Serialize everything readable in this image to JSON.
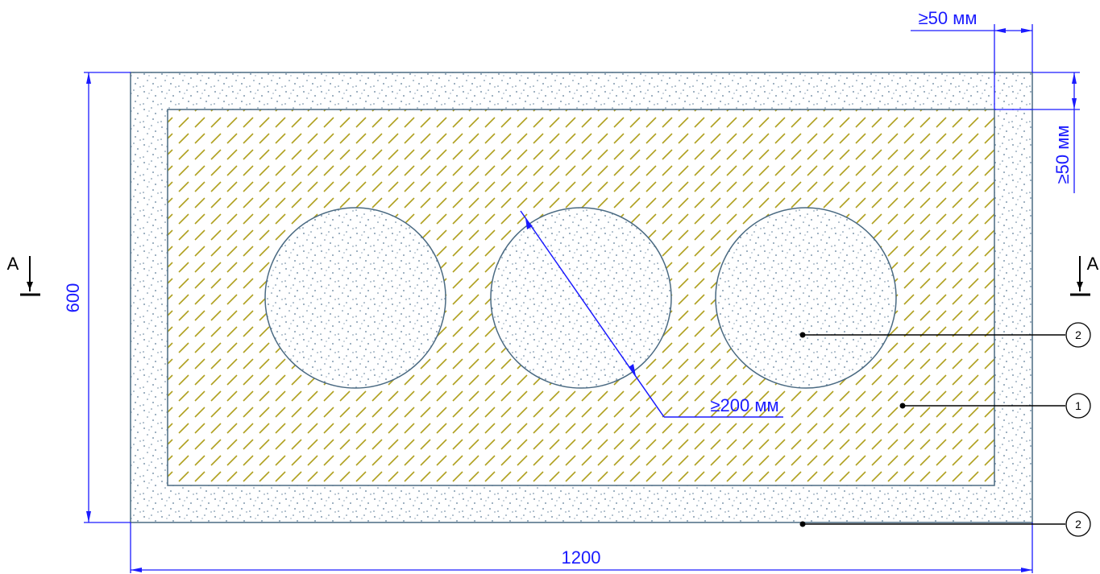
{
  "dimensions": {
    "width": "1200",
    "height": "600",
    "edge_top": "≥50 мм",
    "edge_right": "≥50 мм",
    "diagonal": "≥200 мм"
  },
  "section": {
    "left": "A",
    "right": "A"
  },
  "callouts": [
    {
      "number": "2"
    },
    {
      "number": "1"
    },
    {
      "number": "2"
    }
  ],
  "colors": {
    "outline": "#4a6a82",
    "hatch": "#b0a020",
    "stipple": "#5a7a96",
    "dimension": "#1a1aff"
  }
}
